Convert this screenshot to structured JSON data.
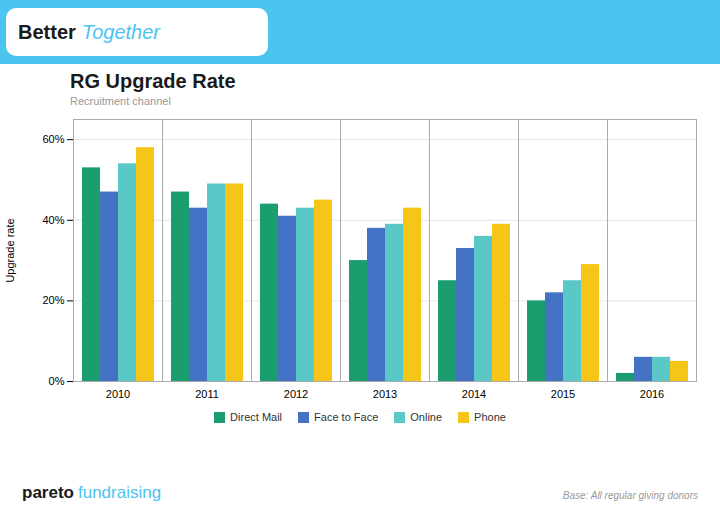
{
  "chart_data": {
    "type": "bar",
    "title": "RG Upgrade Rate",
    "subtitle": "Recruitment channel",
    "ylabel": "Upgrade rate",
    "categories": [
      "2010",
      "2011",
      "2012",
      "2013",
      "2014",
      "2015",
      "2016"
    ],
    "series": [
      {
        "name": "Direct Mail",
        "color": "#1a9e6e",
        "values": [
          0.53,
          0.47,
          0.44,
          0.3,
          0.25,
          0.2,
          0.02
        ]
      },
      {
        "name": "Face to Face",
        "color": "#4472c4",
        "values": [
          0.47,
          0.43,
          0.41,
          0.38,
          0.33,
          0.22,
          0.06
        ]
      },
      {
        "name": "Online",
        "color": "#5bc8c8",
        "values": [
          0.54,
          0.49,
          0.43,
          0.39,
          0.36,
          0.25,
          0.06
        ]
      },
      {
        "name": "Phone",
        "color": "#f5c518",
        "values": [
          0.58,
          0.49,
          0.45,
          0.43,
          0.39,
          0.29,
          0.05
        ]
      }
    ],
    "ylim": [
      0,
      0.65
    ],
    "yticks": [
      {
        "value": 0,
        "label": "0%"
      },
      {
        "value": 0.2,
        "label": "20%"
      },
      {
        "value": 0.4,
        "label": "40%"
      },
      {
        "value": 0.6,
        "label": "60%"
      }
    ],
    "grid": true,
    "legend": "bottom",
    "annotations": [
      "Better",
      "Together",
      "Base: All regular giving donors",
      "pareto",
      "fundraising"
    ]
  }
}
